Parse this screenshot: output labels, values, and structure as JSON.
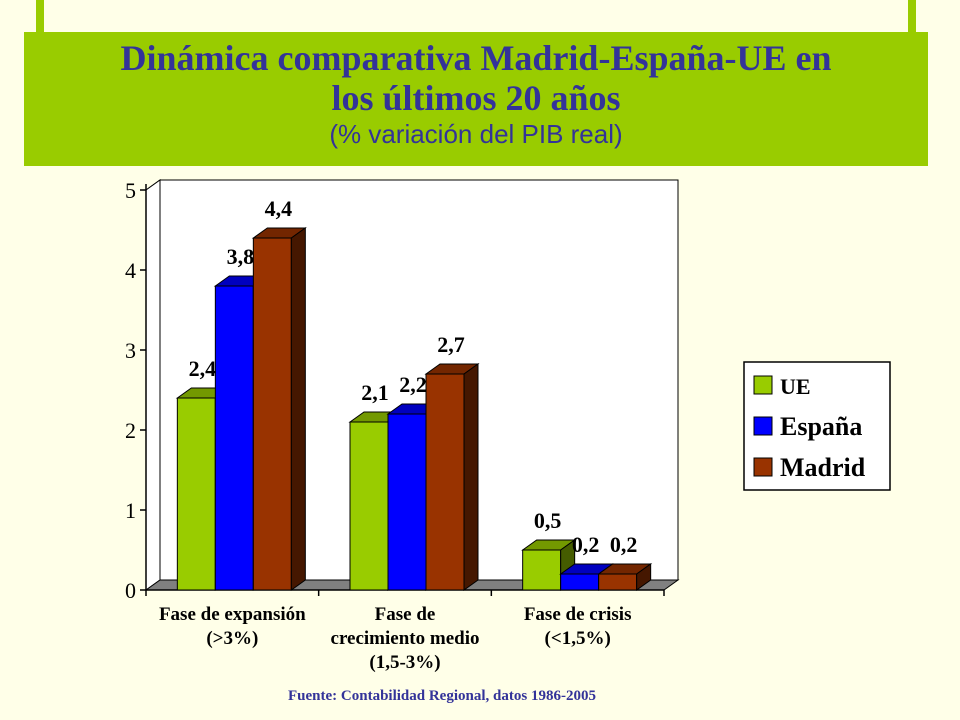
{
  "header": {
    "title_line1": "Dinámica comparativa Madrid-España-UE en",
    "title_line2": "los últimos 20 años",
    "subtitle": "(% variación del PIB real)"
  },
  "source": "Fuente: Contabilidad Regional, datos 1986-2005",
  "colors": {
    "background": "#ffffe8",
    "accent": "#99cc00",
    "title": "#333399",
    "UE": "#99cc00",
    "España": "#0000ff",
    "Madrid": "#993300"
  },
  "chart_data": {
    "type": "bar",
    "title": "",
    "xlabel": "",
    "ylabel": "",
    "ylim": [
      0,
      5
    ],
    "yticks": [
      "0",
      "1",
      "2",
      "3",
      "4",
      "5"
    ],
    "categories": [
      [
        "Fase de expansión",
        "(>3%)"
      ],
      [
        "Fase de",
        "crecimiento medio",
        "(1,5-3%)"
      ],
      [
        "Fase de crisis",
        "(<1,5%)"
      ]
    ],
    "series": [
      {
        "name": "UE",
        "values": [
          2.4,
          2.1,
          0.5
        ],
        "labels": [
          "2,4",
          "2,1",
          "0,5"
        ]
      },
      {
        "name": "España",
        "values": [
          3.8,
          2.2,
          0.2
        ],
        "labels": [
          "3,8",
          "2,2",
          "0,2"
        ]
      },
      {
        "name": "Madrid",
        "values": [
          4.4,
          2.7,
          0.2
        ],
        "labels": [
          "4,4",
          "2,7",
          "0,2"
        ]
      }
    ],
    "legend_position": "right",
    "grid": false,
    "style": "3d-bar"
  }
}
